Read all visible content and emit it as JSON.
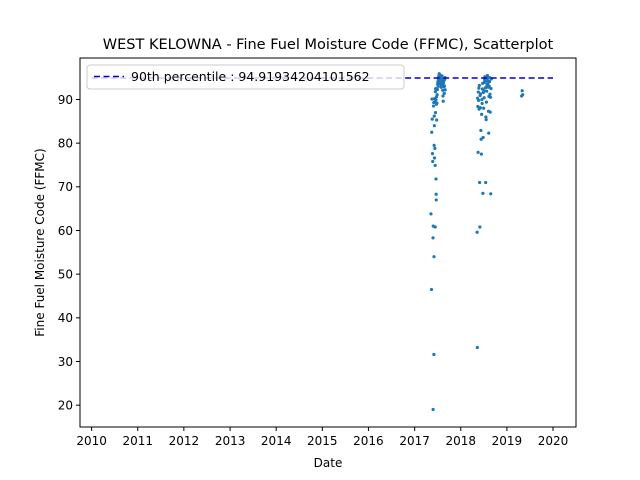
{
  "colors": {
    "point": "#1f77b4",
    "reference_line": "#0000cc",
    "axes": "#000000",
    "background": "#ffffff"
  },
  "chart_data": {
    "type": "scatter",
    "title": "WEST KELOWNA - Fine Fuel Moisture Code (FFMC), Scatterplot",
    "xlabel": "Date",
    "ylabel": "Fine Fuel Moisture Code (FFMC)",
    "xlim": [
      "2009-10-01",
      "2020-07-01"
    ],
    "ylim": [
      15,
      99.5
    ],
    "x_ticks": [
      "2010",
      "2011",
      "2012",
      "2013",
      "2014",
      "2015",
      "2016",
      "2017",
      "2018",
      "2019",
      "2020"
    ],
    "y_ticks": [
      20,
      30,
      40,
      50,
      60,
      70,
      80,
      90
    ],
    "grid": false,
    "legend": {
      "position": "top-left",
      "entries": [
        "90th percentile : 94.91934204101562"
      ]
    },
    "reference_lines": [
      {
        "label": "90th percentile : 94.91934204101562",
        "y": 94.91934204101562,
        "x_start": "2010-01-01",
        "x_end": "2020-01-01",
        "style": "dashed"
      }
    ],
    "series": [
      {
        "points": [
          [
            "2017-05-10",
            63.8
          ],
          [
            "2017-05-14",
            46.5
          ],
          [
            "2017-05-16",
            82.5
          ],
          [
            "2017-05-18",
            90.1
          ],
          [
            "2017-05-20",
            85.5
          ],
          [
            "2017-05-22",
            77.6
          ],
          [
            "2017-05-24",
            75.8
          ],
          [
            "2017-05-26",
            58.3
          ],
          [
            "2017-05-27",
            19.0
          ],
          [
            "2017-05-28",
            61.0
          ],
          [
            "2017-05-30",
            88.5
          ],
          [
            "2017-06-01",
            89.3
          ],
          [
            "2017-06-02",
            31.6
          ],
          [
            "2017-06-03",
            54.0
          ],
          [
            "2017-06-04",
            79.5
          ],
          [
            "2017-06-05",
            86.2
          ],
          [
            "2017-06-06",
            84.0
          ],
          [
            "2017-06-07",
            76.6
          ],
          [
            "2017-06-08",
            90.2
          ],
          [
            "2017-06-09",
            89.5
          ],
          [
            "2017-06-10",
            78.8
          ],
          [
            "2017-06-12",
            74.9
          ],
          [
            "2017-06-13",
            60.8
          ],
          [
            "2017-06-14",
            91.8
          ],
          [
            "2017-06-15",
            87.0
          ],
          [
            "2017-06-16",
            92.5
          ],
          [
            "2017-06-18",
            89.9
          ],
          [
            "2017-06-19",
            71.8
          ],
          [
            "2017-06-20",
            68.3
          ],
          [
            "2017-06-21",
            67.0
          ],
          [
            "2017-06-22",
            88.9
          ],
          [
            "2017-06-23",
            90.6
          ],
          [
            "2017-06-24",
            85.3
          ],
          [
            "2017-06-26",
            89.2
          ],
          [
            "2017-06-28",
            91.1
          ],
          [
            "2017-06-30",
            92.3
          ],
          [
            "2017-07-02",
            93.5
          ],
          [
            "2017-07-04",
            94.1
          ],
          [
            "2017-07-06",
            93.0
          ],
          [
            "2017-07-08",
            94.6
          ],
          [
            "2017-07-10",
            95.3
          ],
          [
            "2017-07-12",
            94.8
          ],
          [
            "2017-07-14",
            95.9
          ],
          [
            "2017-07-16",
            94.2
          ],
          [
            "2017-07-18",
            93.6
          ],
          [
            "2017-07-20",
            95.6
          ],
          [
            "2017-07-22",
            94.9
          ],
          [
            "2017-07-24",
            93.9
          ],
          [
            "2017-07-26",
            95.1
          ],
          [
            "2017-07-28",
            94.4
          ],
          [
            "2017-07-30",
            92.8
          ],
          [
            "2017-08-01",
            93.3
          ],
          [
            "2017-08-03",
            94.0
          ],
          [
            "2017-08-05",
            95.4
          ],
          [
            "2017-08-07",
            94.7
          ],
          [
            "2017-08-09",
            93.4
          ],
          [
            "2017-08-11",
            92.1
          ],
          [
            "2017-08-13",
            90.8
          ],
          [
            "2017-08-15",
            89.6
          ],
          [
            "2017-08-17",
            93.8
          ],
          [
            "2017-08-19",
            94.3
          ],
          [
            "2017-08-21",
            92.9
          ],
          [
            "2017-08-23",
            91.4
          ],
          [
            "2017-08-25",
            93.1
          ],
          [
            "2017-08-27",
            94.6
          ],
          [
            "2017-08-29",
            95.0
          ],
          [
            "2017-08-31",
            92.2
          ],
          [
            "2018-05-10",
            59.6
          ],
          [
            "2018-05-12",
            33.2
          ],
          [
            "2018-05-14",
            90.3
          ],
          [
            "2018-05-16",
            88.4
          ],
          [
            "2018-05-18",
            77.9
          ],
          [
            "2018-05-20",
            91.7
          ],
          [
            "2018-05-22",
            89.8
          ],
          [
            "2018-05-24",
            92.6
          ],
          [
            "2018-05-26",
            87.8
          ],
          [
            "2018-05-28",
            93.2
          ],
          [
            "2018-05-30",
            71.0
          ],
          [
            "2018-06-01",
            60.8
          ],
          [
            "2018-06-03",
            90.9
          ],
          [
            "2018-06-05",
            88.1
          ],
          [
            "2018-06-07",
            91.3
          ],
          [
            "2018-06-09",
            82.9
          ],
          [
            "2018-06-11",
            80.9
          ],
          [
            "2018-06-13",
            77.5
          ],
          [
            "2018-06-15",
            86.6
          ],
          [
            "2018-06-17",
            90.0
          ],
          [
            "2018-06-19",
            89.1
          ],
          [
            "2018-06-21",
            92.4
          ],
          [
            "2018-06-23",
            93.7
          ],
          [
            "2018-06-25",
            68.5
          ],
          [
            "2018-06-27",
            81.3
          ],
          [
            "2018-06-29",
            91.6
          ],
          [
            "2018-07-01",
            88.0
          ],
          [
            "2018-07-03",
            92.0
          ],
          [
            "2018-07-05",
            90.4
          ],
          [
            "2018-07-07",
            93.9
          ],
          [
            "2018-07-09",
            94.5
          ],
          [
            "2018-07-11",
            95.2
          ],
          [
            "2018-07-13",
            94.0
          ],
          [
            "2018-07-15",
            92.7
          ],
          [
            "2018-07-17",
            71.0
          ],
          [
            "2018-07-19",
            86.0
          ],
          [
            "2018-07-21",
            85.4
          ],
          [
            "2018-07-23",
            89.4
          ],
          [
            "2018-07-25",
            91.9
          ],
          [
            "2018-07-27",
            93.3
          ],
          [
            "2018-07-29",
            94.8
          ],
          [
            "2018-07-31",
            95.5
          ],
          [
            "2018-08-02",
            94.3
          ],
          [
            "2018-08-04",
            93.6
          ],
          [
            "2018-08-06",
            92.8
          ],
          [
            "2018-08-08",
            87.3
          ],
          [
            "2018-08-10",
            82.3
          ],
          [
            "2018-08-12",
            90.7
          ],
          [
            "2018-08-14",
            93.0
          ],
          [
            "2018-08-16",
            94.1
          ],
          [
            "2018-08-18",
            95.0
          ],
          [
            "2018-08-20",
            91.2
          ],
          [
            "2018-08-22",
            87.1
          ],
          [
            "2018-08-24",
            90.5
          ],
          [
            "2018-08-26",
            68.4
          ],
          [
            "2018-08-28",
            92.5
          ],
          [
            "2018-08-30",
            94.7
          ],
          [
            "2019-04-28",
            90.8
          ],
          [
            "2019-05-02",
            92.0
          ],
          [
            "2019-05-06",
            91.1
          ]
        ]
      }
    ]
  }
}
